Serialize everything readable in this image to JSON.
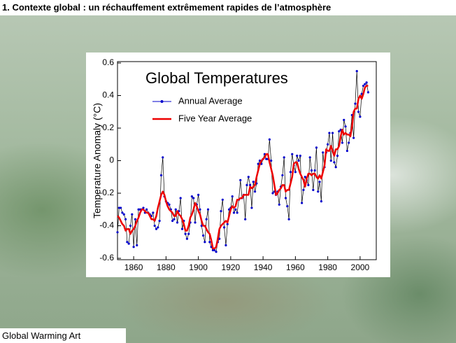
{
  "slide_title": "1. Contexte global : un réchauffement extrêmement rapides de l’atmosphère",
  "credit": "Global Warming Art",
  "chart_data": {
    "type": "line",
    "title": "Global Temperatures",
    "y_label": "Temperature Anomaly (°C)",
    "x": [
      1850,
      1851,
      1852,
      1853,
      1854,
      1855,
      1856,
      1857,
      1858,
      1859,
      1860,
      1861,
      1862,
      1863,
      1864,
      1865,
      1866,
      1867,
      1868,
      1869,
      1870,
      1871,
      1872,
      1873,
      1874,
      1875,
      1876,
      1877,
      1878,
      1879,
      1880,
      1881,
      1882,
      1883,
      1884,
      1885,
      1886,
      1887,
      1888,
      1889,
      1890,
      1891,
      1892,
      1893,
      1894,
      1895,
      1896,
      1897,
      1898,
      1899,
      1900,
      1901,
      1902,
      1903,
      1904,
      1905,
      1906,
      1907,
      1908,
      1909,
      1910,
      1911,
      1912,
      1913,
      1914,
      1915,
      1916,
      1917,
      1918,
      1919,
      1920,
      1921,
      1922,
      1923,
      1924,
      1925,
      1926,
      1927,
      1928,
      1929,
      1930,
      1931,
      1932,
      1933,
      1934,
      1935,
      1936,
      1937,
      1938,
      1939,
      1940,
      1941,
      1942,
      1943,
      1944,
      1945,
      1946,
      1947,
      1948,
      1949,
      1950,
      1951,
      1952,
      1953,
      1954,
      1955,
      1956,
      1957,
      1958,
      1959,
      1960,
      1961,
      1962,
      1963,
      1964,
      1965,
      1966,
      1967,
      1968,
      1969,
      1970,
      1971,
      1972,
      1973,
      1974,
      1975,
      1976,
      1977,
      1978,
      1979,
      1980,
      1981,
      1982,
      1983,
      1984,
      1985,
      1986,
      1987,
      1988,
      1989,
      1990,
      1991,
      1992,
      1993,
      1994,
      1995,
      1996,
      1997,
      1998,
      1999,
      2000,
      2001,
      2002,
      2003,
      2004,
      2005
    ],
    "series": [
      {
        "name": "Annual Average",
        "color": "#0000cc",
        "markers": true,
        "values": [
          -0.44,
          -0.29,
          -0.29,
          -0.32,
          -0.33,
          -0.36,
          -0.5,
          -0.51,
          -0.4,
          -0.33,
          -0.53,
          -0.36,
          -0.52,
          -0.3,
          -0.3,
          -0.3,
          -0.29,
          -0.32,
          -0.3,
          -0.32,
          -0.33,
          -0.34,
          -0.32,
          -0.4,
          -0.42,
          -0.41,
          -0.37,
          -0.09,
          0.02,
          -0.22,
          -0.25,
          -0.26,
          -0.27,
          -0.3,
          -0.37,
          -0.36,
          -0.3,
          -0.38,
          -0.31,
          -0.23,
          -0.42,
          -0.37,
          -0.45,
          -0.48,
          -0.45,
          -0.38,
          -0.22,
          -0.23,
          -0.38,
          -0.27,
          -0.21,
          -0.3,
          -0.4,
          -0.46,
          -0.5,
          -0.36,
          -0.3,
          -0.5,
          -0.53,
          -0.55,
          -0.55,
          -0.56,
          -0.5,
          -0.48,
          -0.31,
          -0.24,
          -0.41,
          -0.52,
          -0.39,
          -0.3,
          -0.29,
          -0.22,
          -0.32,
          -0.3,
          -0.32,
          -0.24,
          -0.12,
          -0.23,
          -0.21,
          -0.36,
          -0.15,
          -0.1,
          -0.15,
          -0.29,
          -0.13,
          -0.19,
          -0.14,
          -0.02,
          0,
          -0.02,
          0.01,
          0.04,
          0.01,
          0.01,
          0.13,
          0,
          -0.2,
          -0.19,
          -0.21,
          -0.19,
          -0.27,
          -0.16,
          -0.09,
          0.02,
          -0.23,
          -0.28,
          -0.36,
          -0.07,
          0.04,
          -0.03,
          -0.07,
          0.03,
          0,
          0.03,
          -0.26,
          -0.18,
          -0.1,
          -0.12,
          -0.15,
          0.02,
          -0.06,
          -0.18,
          -0.06,
          0.08,
          -0.19,
          -0.13,
          -0.25,
          0.05,
          -0.04,
          0.05,
          0.1,
          0.17,
          0,
          0.17,
          -0.01,
          -0.04,
          0.03,
          0.18,
          0.19,
          0.11,
          0.25,
          0.21,
          0.06,
          0.11,
          0.17,
          0.28,
          0.14,
          0.35,
          0.55,
          0.3,
          0.27,
          0.41,
          0.46,
          0.47,
          0.48,
          0.42
        ]
      },
      {
        "name": "Five Year Average",
        "color": "#ee0000",
        "markers": false,
        "values": [
          -0.34,
          -0.35,
          -0.37,
          -0.39,
          -0.4,
          -0.43,
          -0.42,
          -0.42,
          -0.45,
          -0.43,
          -0.42,
          -0.4,
          -0.37,
          -0.35,
          -0.32,
          -0.3,
          -0.3,
          -0.31,
          -0.32,
          -0.32,
          -0.34,
          -0.36,
          -0.36,
          -0.37,
          -0.34,
          -0.29,
          -0.25,
          -0.21,
          -0.19,
          -0.21,
          -0.25,
          -0.28,
          -0.3,
          -0.31,
          -0.32,
          -0.34,
          -0.34,
          -0.31,
          -0.33,
          -0.34,
          -0.36,
          -0.39,
          -0.43,
          -0.43,
          -0.4,
          -0.35,
          -0.33,
          -0.3,
          -0.26,
          -0.28,
          -0.31,
          -0.33,
          -0.37,
          -0.4,
          -0.4,
          -0.42,
          -0.44,
          -0.45,
          -0.49,
          -0.54,
          -0.54,
          -0.53,
          -0.48,
          -0.42,
          -0.4,
          -0.39,
          -0.38,
          -0.37,
          -0.38,
          -0.34,
          -0.3,
          -0.28,
          -0.29,
          -0.28,
          -0.24,
          -0.24,
          -0.23,
          -0.23,
          -0.21,
          -0.21,
          -0.21,
          -0.21,
          -0.16,
          -0.17,
          -0.16,
          -0.15,
          -0.1,
          -0.06,
          -0.02,
          0,
          0.01,
          0.02,
          0.04,
          0.04,
          -0.01,
          -0.05,
          -0.09,
          -0.15,
          -0.21,
          -0.2,
          -0.18,
          -0.17,
          -0.15,
          -0.15,
          -0.19,
          -0.18,
          -0.18,
          -0.14,
          -0.1,
          -0.02,
          -0.01,
          -0.01,
          -0.05,
          -0.08,
          -0.1,
          -0.12,
          -0.16,
          -0.11,
          -0.08,
          -0.08,
          -0.09,
          -0.08,
          -0.08,
          -0.1,
          -0.11,
          -0.09,
          -0.11,
          -0.07,
          -0.03,
          0.07,
          0.06,
          0.06,
          0.09,
          0.06,
          0.03,
          0.07,
          0.07,
          0.09,
          0.15,
          0.19,
          0.16,
          0.17,
          0.16,
          0.16,
          0.15,
          0.21,
          0.3,
          0.32,
          0.32,
          0.38,
          0.4,
          0.38,
          0.41,
          0.45,
          0.46,
          0.46
        ]
      }
    ],
    "xlim": [
      1850,
      2010
    ],
    "xticks": [
      1860,
      1880,
      1900,
      1920,
      1940,
      1960,
      1980,
      2000
    ],
    "ylim": [
      -0.6,
      0.6
    ],
    "yticks": [
      -0.6,
      -0.4,
      -0.2,
      0,
      0.2,
      0.4,
      0.6
    ],
    "grid": false
  }
}
